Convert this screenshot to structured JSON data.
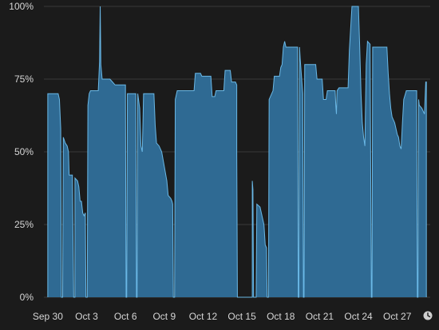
{
  "chart_data": {
    "type": "area",
    "title": "",
    "xlabel": "",
    "ylabel": "",
    "ylim": [
      0,
      100
    ],
    "xlim": [
      -0.3,
      29.3
    ],
    "y_ticks": [
      0,
      25,
      50,
      75,
      100
    ],
    "y_tick_labels": [
      "0%",
      "25%",
      "50%",
      "75%",
      "100%"
    ],
    "x_ticks": [
      0,
      3,
      6,
      9,
      12,
      15,
      18,
      21,
      24,
      27
    ],
    "x_tick_labels": [
      "Sep 30",
      "Oct 3",
      "Oct 6",
      "Oct 9",
      "Oct 12",
      "Oct 15",
      "Oct 18",
      "Oct 21",
      "Oct 24",
      "Oct 27"
    ],
    "grid": true,
    "fill_color": "#2f6a93",
    "line_color": "#6ab8e6",
    "x_unit": "days from Sep 30",
    "series": [
      {
        "values": [
          [
            0.0,
            0
          ],
          [
            0.0,
            70
          ],
          [
            0.8,
            70
          ],
          [
            0.9,
            68
          ],
          [
            1.0,
            58
          ],
          [
            1.05,
            0
          ],
          [
            1.15,
            0
          ],
          [
            1.2,
            55
          ],
          [
            1.35,
            53
          ],
          [
            1.5,
            52
          ],
          [
            1.6,
            50
          ],
          [
            1.65,
            42
          ],
          [
            1.9,
            42
          ],
          [
            2.0,
            0
          ],
          [
            2.1,
            0
          ],
          [
            2.1,
            41
          ],
          [
            2.3,
            40
          ],
          [
            2.4,
            38
          ],
          [
            2.5,
            33
          ],
          [
            2.6,
            33
          ],
          [
            2.7,
            29
          ],
          [
            2.8,
            28
          ],
          [
            2.9,
            29
          ],
          [
            2.95,
            0
          ],
          [
            3.05,
            0
          ],
          [
            3.1,
            66
          ],
          [
            3.2,
            70
          ],
          [
            3.3,
            71
          ],
          [
            3.9,
            71
          ],
          [
            4.0,
            81
          ],
          [
            4.05,
            100
          ],
          [
            4.1,
            80
          ],
          [
            4.2,
            75
          ],
          [
            4.8,
            75
          ],
          [
            5.0,
            74
          ],
          [
            5.2,
            73
          ],
          [
            6.0,
            73
          ],
          [
            6.05,
            0
          ],
          [
            6.1,
            0
          ],
          [
            6.15,
            70
          ],
          [
            6.8,
            70
          ],
          [
            6.85,
            0
          ],
          [
            6.9,
            0
          ],
          [
            6.95,
            70
          ],
          [
            7.1,
            65
          ],
          [
            7.2,
            52
          ],
          [
            7.3,
            50
          ],
          [
            7.35,
            59
          ],
          [
            7.4,
            70
          ],
          [
            8.2,
            70
          ],
          [
            8.3,
            59
          ],
          [
            8.4,
            53
          ],
          [
            8.6,
            52
          ],
          [
            8.8,
            50
          ],
          [
            9.0,
            45
          ],
          [
            9.2,
            40
          ],
          [
            9.3,
            35
          ],
          [
            9.5,
            34
          ],
          [
            9.6,
            33
          ],
          [
            9.65,
            32
          ],
          [
            9.7,
            0
          ],
          [
            9.8,
            0
          ],
          [
            9.85,
            68
          ],
          [
            10.0,
            71
          ],
          [
            11.3,
            71
          ],
          [
            11.4,
            77
          ],
          [
            11.8,
            77
          ],
          [
            11.9,
            76
          ],
          [
            12.6,
            76
          ],
          [
            12.7,
            69
          ],
          [
            12.9,
            69
          ],
          [
            13.0,
            71
          ],
          [
            13.6,
            71
          ],
          [
            13.7,
            78
          ],
          [
            14.1,
            78
          ],
          [
            14.2,
            74
          ],
          [
            14.5,
            74
          ],
          [
            14.6,
            73
          ],
          [
            14.6,
            50
          ],
          [
            14.65,
            0
          ],
          [
            15.8,
            0
          ],
          [
            15.8,
            40
          ],
          [
            15.85,
            37
          ],
          [
            15.9,
            0
          ],
          [
            16.1,
            0
          ],
          [
            16.15,
            32
          ],
          [
            16.4,
            31
          ],
          [
            16.5,
            29
          ],
          [
            16.6,
            27
          ],
          [
            16.7,
            25
          ],
          [
            16.8,
            18
          ],
          [
            16.9,
            17
          ],
          [
            16.95,
            0
          ],
          [
            17.05,
            0
          ],
          [
            17.1,
            68
          ],
          [
            17.4,
            71
          ],
          [
            17.5,
            76
          ],
          [
            17.9,
            76
          ],
          [
            18.0,
            79
          ],
          [
            18.1,
            80
          ],
          [
            18.2,
            86
          ],
          [
            18.3,
            88
          ],
          [
            18.4,
            86
          ],
          [
            19.3,
            86
          ],
          [
            19.35,
            0
          ],
          [
            19.4,
            0
          ],
          [
            19.45,
            86
          ],
          [
            19.5,
            82
          ],
          [
            19.7,
            70
          ],
          [
            19.75,
            0
          ],
          [
            19.8,
            0
          ],
          [
            19.85,
            80
          ],
          [
            20.7,
            80
          ],
          [
            20.8,
            75
          ],
          [
            21.2,
            75
          ],
          [
            21.3,
            68
          ],
          [
            21.5,
            68
          ],
          [
            21.6,
            71
          ],
          [
            22.2,
            71
          ],
          [
            22.25,
            66
          ],
          [
            22.3,
            63
          ],
          [
            22.35,
            71
          ],
          [
            22.5,
            72
          ],
          [
            23.2,
            72
          ],
          [
            23.3,
            85
          ],
          [
            23.5,
            100
          ],
          [
            24.0,
            100
          ],
          [
            24.1,
            86
          ],
          [
            24.2,
            70
          ],
          [
            24.3,
            60
          ],
          [
            24.4,
            55
          ],
          [
            24.5,
            52
          ],
          [
            24.6,
            80
          ],
          [
            24.7,
            88
          ],
          [
            24.9,
            87
          ],
          [
            25.0,
            0
          ],
          [
            25.05,
            0
          ],
          [
            25.1,
            86
          ],
          [
            26.2,
            86
          ],
          [
            26.3,
            77
          ],
          [
            26.4,
            70
          ],
          [
            26.5,
            65
          ],
          [
            26.6,
            62
          ],
          [
            26.8,
            60
          ],
          [
            26.9,
            58
          ],
          [
            27.0,
            56
          ],
          [
            27.1,
            55
          ],
          [
            27.2,
            52
          ],
          [
            27.3,
            51
          ],
          [
            27.4,
            60
          ],
          [
            27.5,
            68
          ],
          [
            27.7,
            71
          ],
          [
            28.5,
            71
          ],
          [
            28.55,
            0
          ],
          [
            28.6,
            0
          ],
          [
            28.65,
            68
          ],
          [
            28.7,
            66
          ],
          [
            28.9,
            65
          ],
          [
            29.0,
            64
          ],
          [
            29.1,
            63
          ],
          [
            29.2,
            74
          ],
          [
            29.25,
            74
          ],
          [
            29.25,
            0
          ]
        ]
      }
    ]
  },
  "legend_icon": "clock-icon"
}
